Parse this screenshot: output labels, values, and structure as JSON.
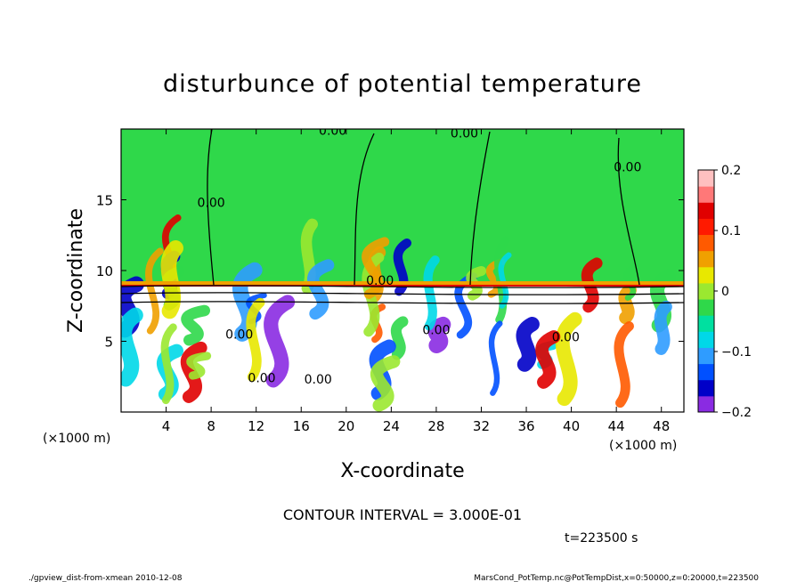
{
  "chart_data": {
    "type": "heatmap",
    "title": "disturbunce of potential temperature",
    "xlabel": "X-coordinate",
    "ylabel": "Z-coordinate",
    "x_unit_left": "(×1000 m)",
    "x_unit_right": "(×1000 m)",
    "xlim": [
      0,
      50
    ],
    "ylim": [
      0,
      20
    ],
    "x_ticks": [
      4,
      8,
      12,
      16,
      20,
      24,
      28,
      32,
      36,
      40,
      44,
      48
    ],
    "y_ticks": [
      5,
      10,
      15
    ],
    "colorbar": {
      "range": [
        -0.2,
        0.2
      ],
      "tick_values": [
        0.2,
        0.1,
        0,
        -0.1,
        -0.2
      ],
      "tick_labels": [
        "0.2",
        "0.1",
        "0",
        "−0.1",
        "−0.2"
      ],
      "colors": [
        "#8a2be2",
        "#0000c8",
        "#0050ff",
        "#2f9cff",
        "#00d8e8",
        "#00e0a0",
        "#2fd84a",
        "#9be830",
        "#e8e800",
        "#f0a000",
        "#ff5a00",
        "#ff1a00",
        "#e00000",
        "#ff7878",
        "#ffc0c0"
      ]
    },
    "contour_labels": [
      {
        "text": "0.00",
        "x": 18.8,
        "z": 19.6
      },
      {
        "text": "0.00",
        "x": 30.5,
        "z": 19.4
      },
      {
        "text": "0.00",
        "x": 8.0,
        "z": 14.5
      },
      {
        "text": "0.00",
        "x": 45.0,
        "z": 17.0
      },
      {
        "text": "0.00",
        "x": 23.0,
        "z": 9.0
      },
      {
        "text": "0.00",
        "x": 10.5,
        "z": 5.2
      },
      {
        "text": "0.00",
        "x": 12.5,
        "z": 2.1
      },
      {
        "text": "0.00",
        "x": 28.0,
        "z": 5.5
      },
      {
        "text": "0.00",
        "x": 39.5,
        "z": 5.0
      },
      {
        "text": "0.00",
        "x": 17.5,
        "z": 2.0
      }
    ],
    "contour_interval": "CONTOUR INTERVAL = 3.000E-01",
    "time": "t=223500 s"
  },
  "footer": {
    "left": "./gpview_dist-from-xmean  2010-12-08",
    "right": "MarsCond_PotTemp.nc@PotTempDist,x=0:50000,z=0:20000,t=223500"
  },
  "colors": {
    "upper_field": "#2fd84a",
    "frame": "#000000"
  }
}
